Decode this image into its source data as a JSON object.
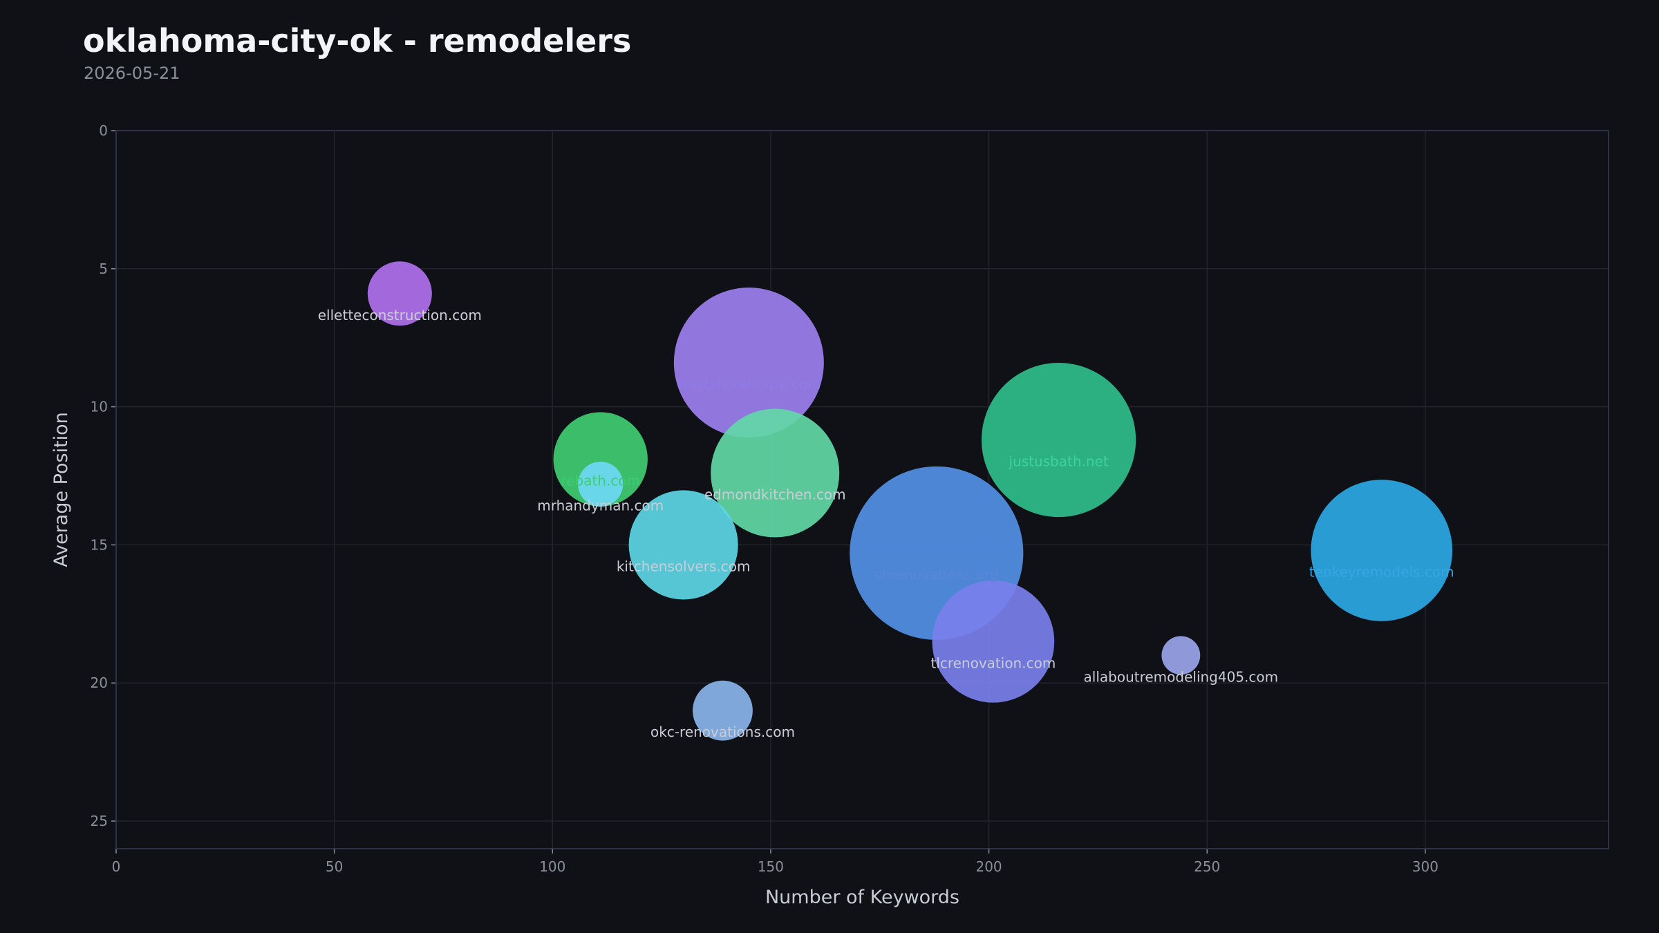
{
  "header": {
    "title": "oklahoma-city-ok - remodelers",
    "subtitle": "2026-05-21"
  },
  "colors": {
    "background": "#101116",
    "plot_border": "#2e3246",
    "grid": "#22242e",
    "tick_text": "#8a8f9c",
    "axis_title": "#c7cbd4",
    "label_text": "#c9cdd6"
  },
  "chart_data": {
    "type": "scatter",
    "variant": "bubble",
    "xlabel": "Number of Keywords",
    "ylabel": "Average Position",
    "xlim": [
      0,
      342
    ],
    "ylim": [
      26,
      0
    ],
    "y_inverted": true,
    "grid": true,
    "x_ticks": [
      0,
      50,
      100,
      150,
      200,
      250,
      300
    ],
    "y_ticks": [
      0,
      5,
      10,
      15,
      20,
      25
    ],
    "bubble_size_note": "bubble area varies per domain; size values are relative",
    "points": [
      {
        "domain": "ellette‌construction.com",
        "x": 65,
        "y": 5.9,
        "size": 30,
        "color": "#b070ee",
        "label_color": "#c9cdd6"
      },
      {
        "domain": "westshorehome.com",
        "x": 145,
        "y": 8.4,
        "size": 70,
        "color": "#9b7fef",
        "label_color": "#8f7ce6"
      },
      {
        "domain": "rebath.com",
        "x": 111,
        "y": 11.9,
        "size": 44,
        "color": "#3fcc72",
        "label_color": "#3fcc72"
      },
      {
        "domain": "mrhandyman.com",
        "x": 111,
        "y": 12.8,
        "size": 21,
        "color": "#6fd8f4",
        "label_color": "#c9cdd6"
      },
      {
        "domain": "edmondkitchen.com",
        "x": 151,
        "y": 12.4,
        "size": 60,
        "color": "#62d8a6",
        "label_color": "#c9cdd6"
      },
      {
        "domain": "justusbath.net",
        "x": 216,
        "y": 11.2,
        "size": 72,
        "color": "#2fbe8c",
        "label_color": "#3fd29c"
      },
      {
        "domain": "kitchensolvers.com",
        "x": 130,
        "y": 15.0,
        "size": 51,
        "color": "#5cd6e6",
        "label_color": "#c9cdd6"
      },
      {
        "domain": "shrenovations.org",
        "x": 188,
        "y": 15.3,
        "size": 81,
        "color": "#5390e6",
        "label_color": "#5a86d8"
      },
      {
        "domain": "tenkeyremodels.com",
        "x": 290,
        "y": 15.2,
        "size": 66,
        "color": "#2ba8e4",
        "label_color": "#36a7e2"
      },
      {
        "domain": "tlcrenovation.com",
        "x": 201,
        "y": 18.5,
        "size": 57,
        "color": "#7a80ec",
        "label_color": "#c9cdd6"
      },
      {
        "domain": "allaboutremodeling405.com",
        "x": 244,
        "y": 19.0,
        "size": 18,
        "color": "#9aa4ea",
        "label_color": "#c9cdd6"
      },
      {
        "domain": "okc-renovations.com",
        "x": 139,
        "y": 21.0,
        "size": 28,
        "color": "#8ab4ea",
        "label_color": "#c9cdd6"
      }
    ]
  }
}
